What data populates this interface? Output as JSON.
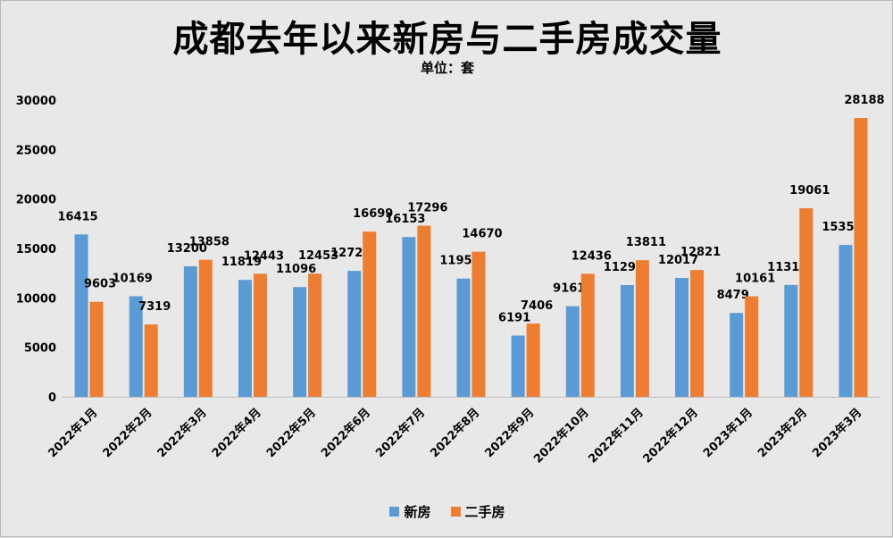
{
  "title": "成都去年以来新房与二手房成交量",
  "subtitle": "单位：套",
  "colors": {
    "new_house": "#5b9bd5",
    "second_hand": "#ed7d31",
    "background": "#e8e8e8"
  },
  "chart_data": {
    "type": "bar",
    "title": "成都去年以来新房与二手房成交量",
    "subtitle": "单位：套",
    "xlabel": "",
    "ylabel": "",
    "ylim": [
      0,
      30000
    ],
    "yticks": [
      0,
      5000,
      10000,
      15000,
      20000,
      25000,
      30000
    ],
    "grid": false,
    "legend_position": "bottom",
    "categories": [
      "2022年1月",
      "2022年2月",
      "2022年3月",
      "2022年4月",
      "2022年5月",
      "2022年6月",
      "2022年7月",
      "2022年8月",
      "2022年9月",
      "2022年10月",
      "2022年11月",
      "2022年12月",
      "2023年1月",
      "2023年2月",
      "2023年3月"
    ],
    "series": [
      {
        "name": "新房",
        "color": "#5b9bd5",
        "values": [
          16415,
          10169,
          13200,
          11819,
          11096,
          12729,
          16153,
          11958,
          6191,
          9161,
          11294,
          12017,
          8479,
          11312,
          15350
        ]
      },
      {
        "name": "二手房",
        "color": "#ed7d31",
        "values": [
          9603,
          7319,
          13858,
          12443,
          12453,
          16699,
          17296,
          14670,
          7406,
          12436,
          13811,
          12821,
          10161,
          19061,
          28188
        ]
      }
    ]
  }
}
